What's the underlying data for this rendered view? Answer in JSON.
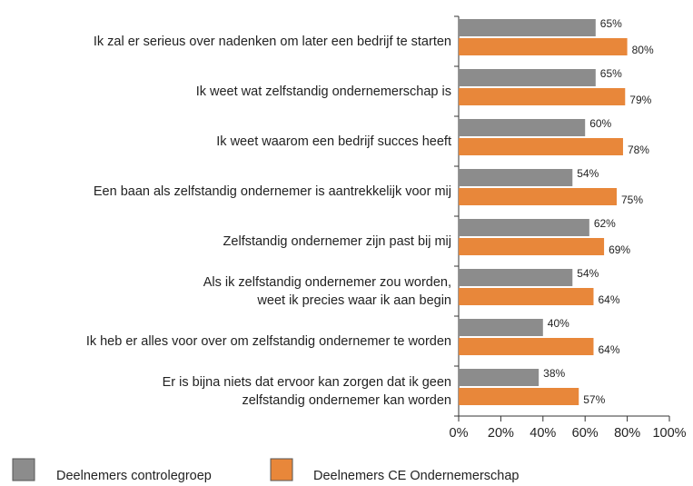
{
  "chart_data": {
    "type": "bar",
    "orientation": "horizontal",
    "categories": [
      "Ik zal er serieus over nadenken om later een bedrijf te starten",
      "Ik weet wat zelfstandig ondernemerschap is",
      "Ik weet waarom een bedrijf succes heeft",
      "Een baan als zelfstandig ondernemer is aantrekkelijk voor mij",
      "Zelfstandig ondernemer zijn past bij mij",
      "Als ik zelfstandig ondernemer zou worden,\nweet ik precies waar ik aan begin",
      "Ik heb er alles voor over om zelfstandig ondernemer te worden",
      "Er is bijna niets dat ervoor kan zorgen dat ik geen\nzelfstandig ondernemer kan worden"
    ],
    "series": [
      {
        "name": "Deelnemers controlegroep",
        "color": "#8c8c8c",
        "values": [
          65,
          65,
          60,
          54,
          62,
          54,
          40,
          38
        ],
        "value_labels": [
          "65%",
          "65%",
          "60%",
          "54%",
          "62%",
          "54%",
          "40%",
          "38%"
        ]
      },
      {
        "name": "Deelnemers CE Ondernemerschap",
        "color": "#e8873a",
        "values": [
          80,
          79,
          78,
          75,
          69,
          64,
          64,
          57
        ],
        "value_labels": [
          "80%",
          "79%",
          "78%",
          "75%",
          "69%",
          "64%",
          "64%",
          "57%"
        ]
      }
    ],
    "xlim": [
      0,
      100
    ],
    "xticks": [
      {
        "value": 0,
        "label": "0%"
      },
      {
        "value": 20,
        "label": "20%"
      },
      {
        "value": 40,
        "label": "40%"
      },
      {
        "value": 60,
        "label": "60%"
      },
      {
        "value": 80,
        "label": "80%"
      },
      {
        "value": 100,
        "label": "100%"
      }
    ]
  }
}
